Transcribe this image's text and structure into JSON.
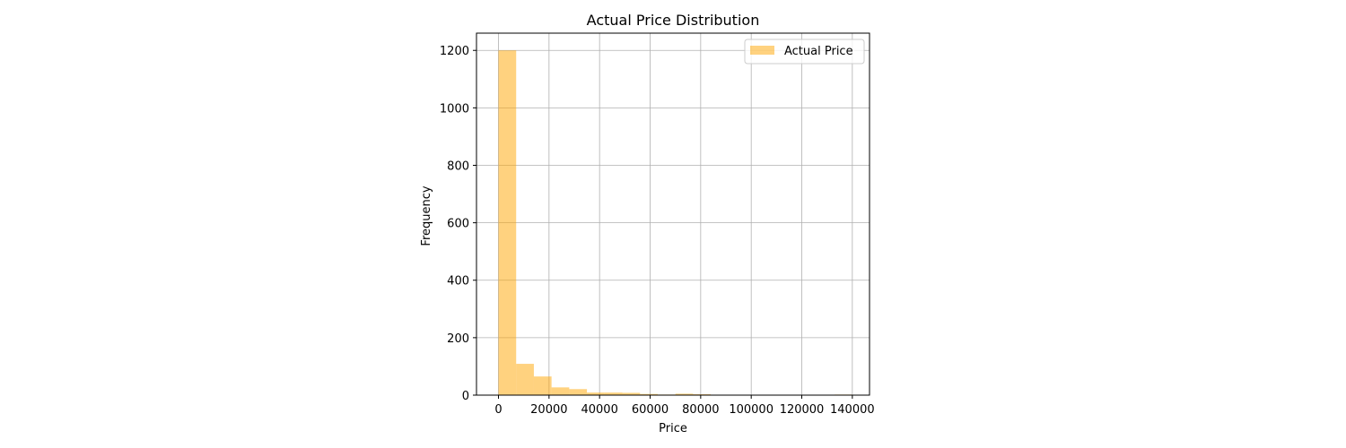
{
  "chart_data": {
    "type": "bar",
    "title": "Actual Price Distribution",
    "xlabel": "Price",
    "ylabel": "Frequency",
    "xlim": [
      -8700,
      146800
    ],
    "ylim": [
      0,
      1260
    ],
    "xticks": [
      0,
      20000,
      40000,
      60000,
      80000,
      100000,
      120000,
      140000
    ],
    "xtick_labels": [
      "0",
      "20000",
      "40000",
      "60000",
      "80000",
      "100000",
      "120000",
      "140000"
    ],
    "yticks": [
      0,
      200,
      400,
      600,
      800,
      1000,
      1200
    ],
    "ytick_labels": [
      "0",
      "200",
      "400",
      "600",
      "800",
      "1000",
      "1200"
    ],
    "grid": true,
    "legend_position": "top-right",
    "series": [
      {
        "name": "Actual Price",
        "color": "#ffa500",
        "opacity": 0.5,
        "bins": [
          {
            "x0": 0,
            "x1": 7000,
            "value": 1200
          },
          {
            "x0": 7000,
            "x1": 14000,
            "value": 109
          },
          {
            "x0": 14000,
            "x1": 21000,
            "value": 65
          },
          {
            "x0": 21000,
            "x1": 28000,
            "value": 27
          },
          {
            "x0": 28000,
            "x1": 35000,
            "value": 21
          },
          {
            "x0": 35000,
            "x1": 42000,
            "value": 9
          },
          {
            "x0": 42000,
            "x1": 49000,
            "value": 9
          },
          {
            "x0": 49000,
            "x1": 56000,
            "value": 8
          },
          {
            "x0": 56000,
            "x1": 63000,
            "value": 4
          },
          {
            "x0": 63000,
            "x1": 70000,
            "value": 2
          },
          {
            "x0": 70000,
            "x1": 77000,
            "value": 5
          },
          {
            "x0": 77000,
            "x1": 84000,
            "value": 3
          },
          {
            "x0": 84000,
            "x1": 91000,
            "value": 1
          },
          {
            "x0": 91000,
            "x1": 98000,
            "value": 0
          },
          {
            "x0": 98000,
            "x1": 105000,
            "value": 1
          },
          {
            "x0": 105000,
            "x1": 112000,
            "value": 0
          },
          {
            "x0": 112000,
            "x1": 119000,
            "value": 0
          },
          {
            "x0": 119000,
            "x1": 126000,
            "value": 0
          },
          {
            "x0": 126000,
            "x1": 133000,
            "value": 1
          },
          {
            "x0": 133000,
            "x1": 140000,
            "value": 2
          }
        ]
      }
    ]
  }
}
